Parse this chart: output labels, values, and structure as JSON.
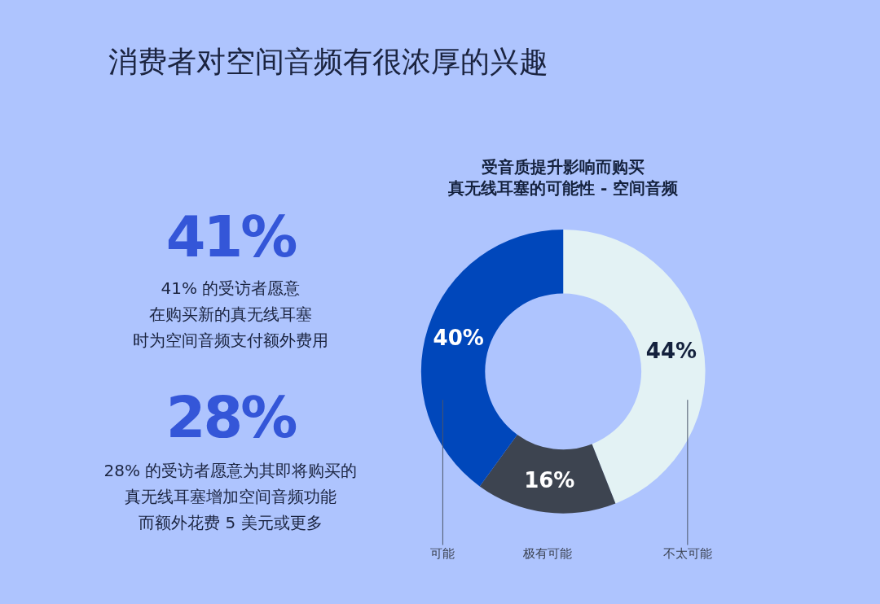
{
  "chart_data": [
    {
      "type": "other",
      "title": "消费者对空间音频有很浓厚的兴趣",
      "annotations": [
        "41%",
        "41% 的受访者愿意在购买新的真无线耳塞时为空间音频支付额外费用",
        "28%",
        "28% 的受访者愿意为其即将购买的真无线耳塞增加空间音频功能而额外花费 5 美元或更多"
      ]
    },
    {
      "type": "donut",
      "title": "受音质提升影响而购买真无线耳塞的可能性 - 空间音频",
      "categories": [
        "不太可能",
        "极有可能",
        "可能"
      ],
      "values": [
        44,
        16,
        40
      ],
      "colors": [
        "#e3f2f4",
        "#3d4450",
        "#0047bb"
      ],
      "value_labels": [
        "44%",
        "16%",
        "40%"
      ],
      "legend": false
    }
  ]
}
